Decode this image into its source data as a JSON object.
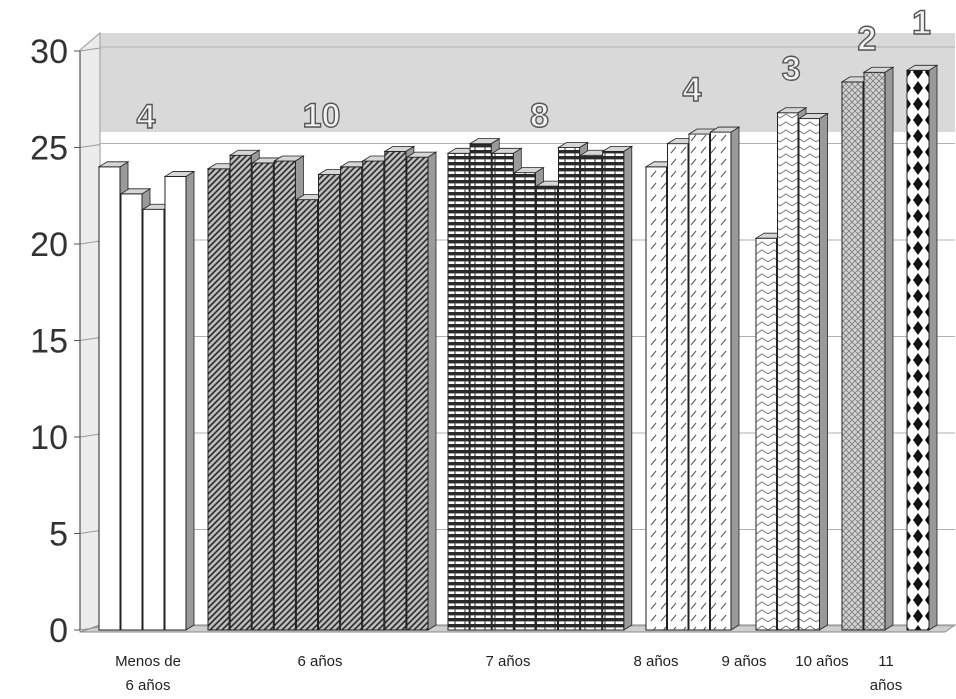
{
  "chart_data": {
    "type": "bar",
    "title": "",
    "xlabel": "",
    "ylabel": "",
    "ylim": [
      0,
      30
    ],
    "yticks": [
      0,
      5,
      10,
      15,
      20,
      25,
      30
    ],
    "grid": true,
    "legend": "none",
    "groups": [
      {
        "label_lines": [
          "Menos de",
          "6 años"
        ],
        "count": "4",
        "pattern": "white",
        "values": [
          24.0,
          22.6,
          21.8,
          23.5
        ]
      },
      {
        "label_lines": [
          "6  años"
        ],
        "count": "10",
        "pattern": "diag-dense",
        "values": [
          23.9,
          24.6,
          24.2,
          24.3,
          22.3,
          23.6,
          24.0,
          24.3,
          24.8,
          24.5
        ]
      },
      {
        "label_lines": [
          "7 años"
        ],
        "count": "8",
        "pattern": "horizontal",
        "values": [
          24.7,
          25.2,
          24.7,
          23.7,
          23.0,
          25.0,
          24.6,
          24.8
        ]
      },
      {
        "label_lines": [
          "8 años"
        ],
        "count": "4",
        "pattern": "diag-dash",
        "values": [
          24.0,
          25.2,
          25.7,
          25.8
        ]
      },
      {
        "label_lines": [
          "9 años"
        ],
        "count": "3",
        "pattern": "chevron",
        "values": [
          20.3,
          26.8,
          26.5
        ]
      },
      {
        "label_lines": [
          "10 años"
        ],
        "count": "2",
        "pattern": "crosshatch",
        "values": [
          28.4,
          28.9
        ]
      },
      {
        "label_lines": [
          "11",
          "años"
        ],
        "count": "1",
        "pattern": "diamond",
        "values": [
          29.0
        ]
      }
    ]
  }
}
